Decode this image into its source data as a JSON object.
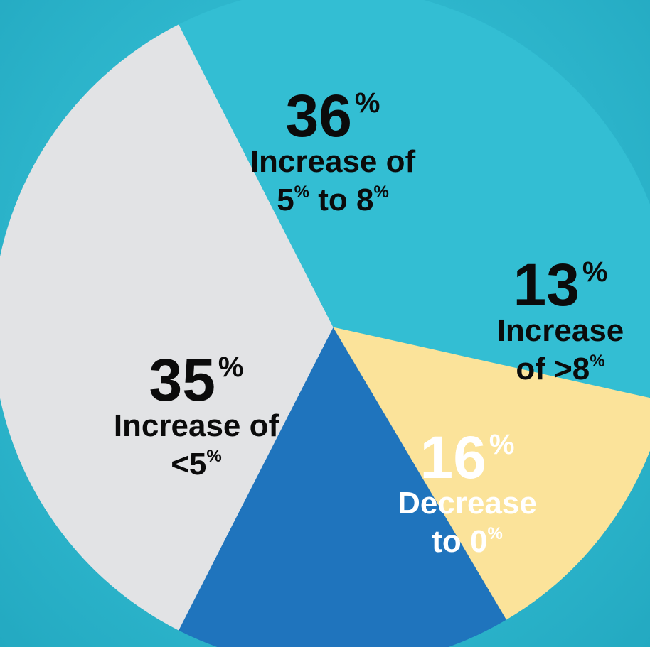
{
  "colors": {
    "background": "#2fb8ce",
    "slice_36": "#33bed3",
    "slice_13": "#fbe39a",
    "slice_16": "#1f74bd",
    "slice_35": "#e2e3e5"
  },
  "chart_data": {
    "type": "pie",
    "title": "",
    "unit": "%",
    "slices": [
      {
        "value": 36,
        "pct_text": "36",
        "sup": "%",
        "label_lines": [
          {
            "text": "Increase of"
          },
          {
            "text": "5",
            "sup": "%",
            "tail": " to 8",
            "sup2": "%"
          }
        ],
        "color": "#33bed3",
        "text_color": "#0b0b0b"
      },
      {
        "value": 13,
        "pct_text": "13",
        "sup": "%",
        "label_lines": [
          {
            "text": "Increase"
          },
          {
            "text": "of >8",
            "sup": "%"
          }
        ],
        "color": "#fbe39a",
        "text_color": "#0b0b0b"
      },
      {
        "value": 16,
        "pct_text": "16",
        "sup": "%",
        "label_lines": [
          {
            "text": "Decrease"
          },
          {
            "text": "to 0",
            "sup": "%"
          }
        ],
        "color": "#1f74bd",
        "text_color": "#ffffff"
      },
      {
        "value": 35,
        "pct_text": "35",
        "sup": "%",
        "label_lines": [
          {
            "text": "Increase of"
          },
          {
            "text": "<5",
            "sup": "%"
          }
        ],
        "color": "#e2e3e5",
        "text_color": "#0b0b0b"
      }
    ]
  }
}
